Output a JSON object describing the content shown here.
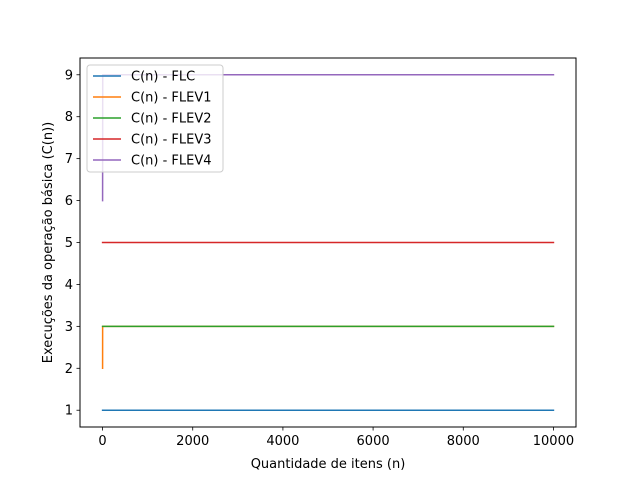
{
  "chart_data": {
    "type": "line",
    "title": "",
    "xlabel": "Quantidade de itens (n)",
    "ylabel": "Execuções da operação básica (C(n))",
    "xlim": [
      -500,
      10500
    ],
    "ylim": [
      0.6,
      9.4
    ],
    "xticks": [
      0,
      2000,
      4000,
      6000,
      8000,
      10000
    ],
    "yticks": [
      1,
      2,
      3,
      4,
      5,
      6,
      7,
      8,
      9
    ],
    "grid": false,
    "legend_position": "top-left",
    "series": [
      {
        "name": "C(n) - FLC",
        "color": "#1f77b4",
        "x": [
          1,
          10000
        ],
        "y": [
          1,
          1
        ]
      },
      {
        "name": "C(n) - FLEV1",
        "color": "#ff7f0e",
        "x": [
          1,
          2,
          10000
        ],
        "y": [
          2,
          3,
          3
        ]
      },
      {
        "name": "C(n) - FLEV2",
        "color": "#2ca02c",
        "x": [
          1,
          10000
        ],
        "y": [
          3,
          3
        ]
      },
      {
        "name": "C(n) - FLEV3",
        "color": "#d62728",
        "x": [
          1,
          10000
        ],
        "y": [
          5,
          5
        ]
      },
      {
        "name": "C(n) - FLEV4",
        "color": "#9467bd",
        "x": [
          1,
          2,
          3,
          4,
          10000
        ],
        "y": [
          6,
          7,
          8,
          9,
          9
        ]
      }
    ]
  }
}
